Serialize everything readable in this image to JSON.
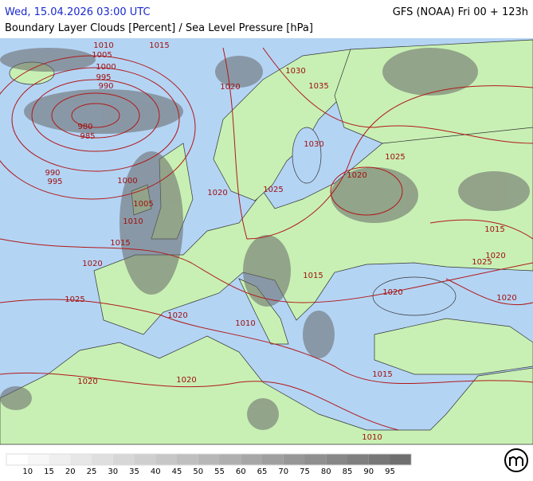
{
  "header": {
    "datetime": "Wed, 15.04.2026 03:00 UTC",
    "model": "GFS (NOAA) Fri 00 + 123h",
    "title": "Boundary Layer Clouds [Percent] / Sea Level Pressure [hPa]"
  },
  "isobar_labels": [
    1010,
    1015,
    1005,
    1000,
    995,
    990,
    980,
    985,
    990,
    995,
    1000,
    1005,
    1010,
    1015,
    1020,
    1025,
    1020,
    1020,
    1020,
    1010,
    1015,
    1020,
    1015,
    1010,
    1020,
    1030,
    1035,
    1030,
    1025,
    1020,
    1020,
    1025,
    1015,
    1025,
    1020,
    1020
  ],
  "legend": {
    "ticks": [
      10,
      15,
      20,
      25,
      30,
      35,
      40,
      45,
      50,
      55,
      60,
      65,
      70,
      75,
      80,
      85,
      90,
      95
    ],
    "colors": [
      "#ffffff",
      "#f7f7f7",
      "#efefef",
      "#e7e7e7",
      "#dfdfdf",
      "#d7d7d7",
      "#cfcfcf",
      "#c7c7c7",
      "#bfbfbf",
      "#b7b7b7",
      "#afafaf",
      "#a7a7a7",
      "#9f9f9f",
      "#979797",
      "#8f8f8f",
      "#878787",
      "#7f7f7f",
      "#777777",
      "#6f6f6f"
    ]
  }
}
